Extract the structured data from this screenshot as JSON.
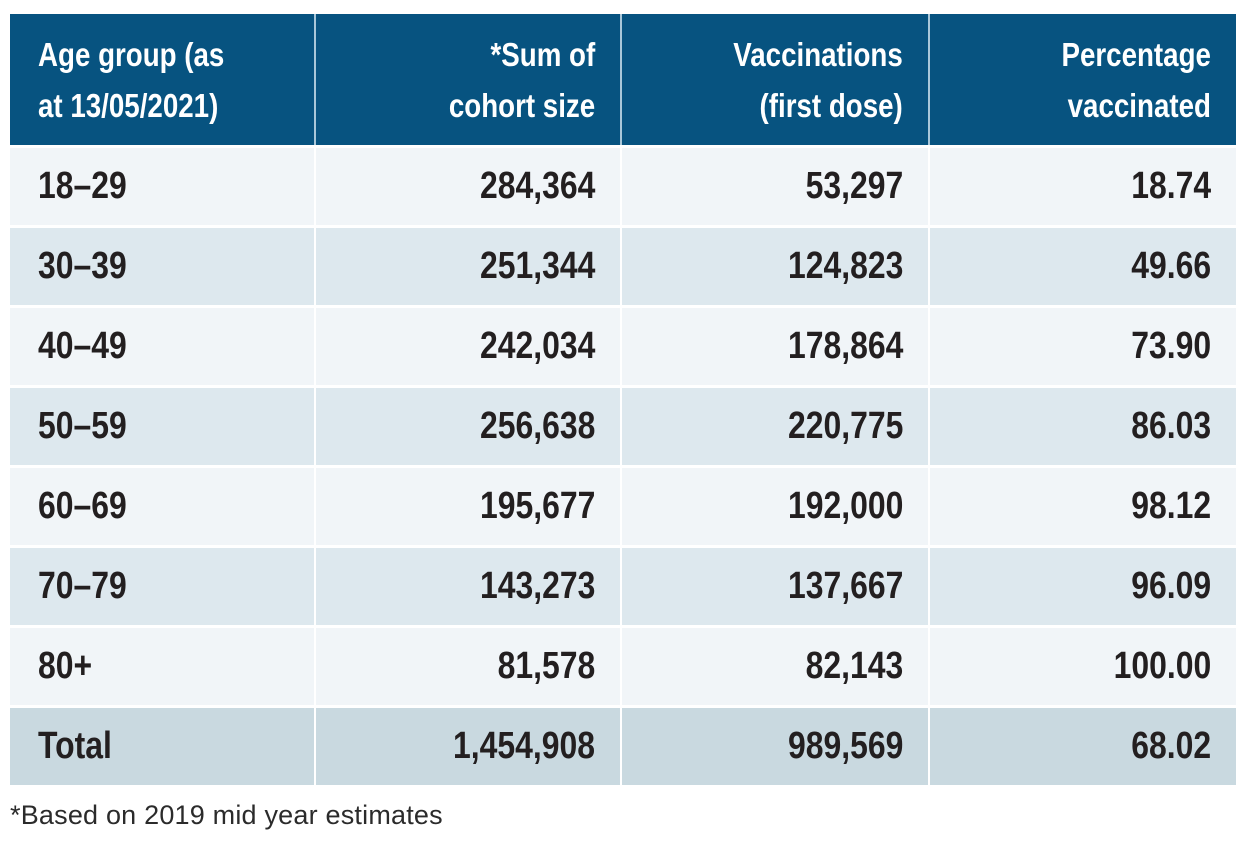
{
  "chart_data": {
    "type": "table",
    "columns": [
      {
        "label": "Age group (as\nat 13/05/2021)",
        "align": "left"
      },
      {
        "label": "*Sum of\ncohort size",
        "align": "right"
      },
      {
        "label": "Vaccinations\n(first dose)",
        "align": "right"
      },
      {
        "label": "Percentage\nvaccinated",
        "align": "right"
      }
    ],
    "rows": [
      {
        "age_group": "18–29",
        "cohort_size": "284,364",
        "vaccinations_first_dose": "53,297",
        "percentage_vaccinated": "18.74"
      },
      {
        "age_group": "30–39",
        "cohort_size": "251,344",
        "vaccinations_first_dose": "124,823",
        "percentage_vaccinated": "49.66"
      },
      {
        "age_group": "40–49",
        "cohort_size": "242,034",
        "vaccinations_first_dose": "178,864",
        "percentage_vaccinated": "73.90"
      },
      {
        "age_group": "50–59",
        "cohort_size": "256,638",
        "vaccinations_first_dose": "220,775",
        "percentage_vaccinated": "86.03"
      },
      {
        "age_group": "60–69",
        "cohort_size": "195,677",
        "vaccinations_first_dose": "192,000",
        "percentage_vaccinated": "98.12"
      },
      {
        "age_group": "70–79",
        "cohort_size": "143,273",
        "vaccinations_first_dose": "137,667",
        "percentage_vaccinated": "96.09"
      },
      {
        "age_group": "80+",
        "cohort_size": "81,578",
        "vaccinations_first_dose": "82,143",
        "percentage_vaccinated": "100.00"
      },
      {
        "age_group": "Total",
        "cohort_size": "1,454,908",
        "vaccinations_first_dose": "989,569",
        "percentage_vaccinated": "68.02"
      }
    ],
    "footnote": "*Based on 2019 mid year estimates"
  },
  "colors": {
    "header_bg": "#075380",
    "header_text": "#ffffff",
    "header_divider": "#a9c7d9",
    "row_light": "#f1f5f8",
    "row_mid": "#dde8ee",
    "row_total": "#c9d9e0",
    "cell_divider": "#ffffff",
    "body_text": "#231f20",
    "footnote_text": "#2b2b2b"
  }
}
